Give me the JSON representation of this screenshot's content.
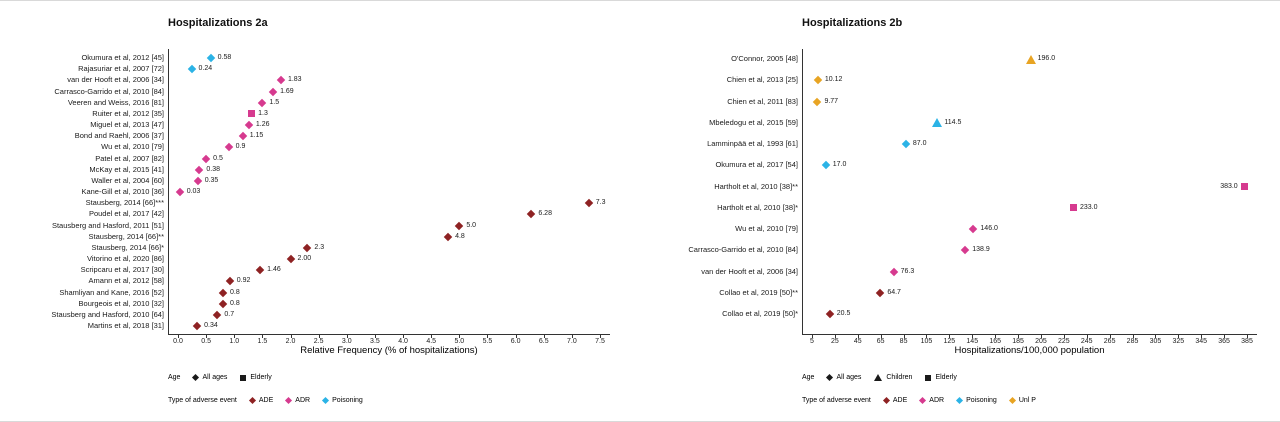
{
  "colors": {
    "ade": "#8e2223",
    "adr": "#d63a8f",
    "poisoning": "#2bb3e6",
    "unlp": "#e8a423",
    "age_glyph": "#1a1a1a",
    "axis": "#333333"
  },
  "legend_titles": {
    "age": "Age",
    "type": "Type of adverse event"
  },
  "chart_data": [
    {
      "type": "scatter",
      "title": "Hospitalizations 2a",
      "xlabel": "Relative Frequency (% of hospitalizations)",
      "xlim": [
        0.0,
        7.5
      ],
      "xticks": [
        "0.0",
        "0.5",
        "1.0",
        "1.5",
        "2.0",
        "2.5",
        "3.0",
        "3.5",
        "4.0",
        "4.5",
        "5.0",
        "5.5",
        "6.0",
        "6.5",
        "7.0",
        "7.5"
      ],
      "grid": false,
      "legend_position": "bottom",
      "age_legend": [
        {
          "label": "All ages",
          "shape": "diamond"
        },
        {
          "label": "Elderly",
          "shape": "square"
        }
      ],
      "type_legend": [
        {
          "label": "ADE",
          "key": "ade"
        },
        {
          "label": "ADR",
          "key": "adr"
        },
        {
          "label": "Poisoning",
          "key": "poisoning"
        }
      ],
      "points": [
        {
          "study": "Okumura et al, 2012 [45]",
          "value": 0.58,
          "label": "0.58",
          "type": "poisoning",
          "shape": "diamond"
        },
        {
          "study": "Rajasuriar et al, 2007 [72]",
          "value": 0.24,
          "label": "0.24",
          "type": "poisoning",
          "shape": "diamond"
        },
        {
          "study": "van der Hooft et al, 2006 [34]",
          "value": 1.83,
          "label": "1.83",
          "type": "adr",
          "shape": "diamond"
        },
        {
          "study": "Carrasco-Garrido et al, 2010 [84]",
          "value": 1.69,
          "label": "1.69",
          "type": "adr",
          "shape": "diamond"
        },
        {
          "study": "Veeren and Weiss, 2016 [81]",
          "value": 1.5,
          "label": "1.5",
          "type": "adr",
          "shape": "diamond"
        },
        {
          "study": "Ruiter et al, 2012 [35]",
          "value": 1.3,
          "label": "1.3",
          "type": "adr",
          "shape": "square"
        },
        {
          "study": "Miguel et al, 2013 [47]",
          "value": 1.26,
          "label": "1.26",
          "type": "adr",
          "shape": "diamond"
        },
        {
          "study": "Bond and Raehl, 2006 [37]",
          "value": 1.15,
          "label": "1.15",
          "type": "adr",
          "shape": "diamond"
        },
        {
          "study": "Wu et al, 2010 [79]",
          "value": 0.9,
          "label": "0.9",
          "type": "adr",
          "shape": "diamond"
        },
        {
          "study": "Patel et al, 2007 [82]",
          "value": 0.5,
          "label": "0.5",
          "type": "adr",
          "shape": "diamond"
        },
        {
          "study": "McKay et al, 2015 [41]",
          "value": 0.38,
          "label": "0.38",
          "type": "adr",
          "shape": "diamond"
        },
        {
          "study": "Waller et al, 2004 [60]",
          "value": 0.35,
          "label": "0.35",
          "type": "adr",
          "shape": "diamond"
        },
        {
          "study": "Kane-Gill et al, 2010 [36]",
          "value": 0.03,
          "label": "0.03",
          "type": "adr",
          "shape": "diamond"
        },
        {
          "study": "Stausberg, 2014 [66]***",
          "value": 7.3,
          "label": "7.3",
          "type": "ade",
          "shape": "diamond"
        },
        {
          "study": "Poudel et al, 2017 [42]",
          "value": 6.28,
          "label": "6.28",
          "type": "ade",
          "shape": "diamond"
        },
        {
          "study": "Stausberg and Hasford, 2011 [51]",
          "value": 5.0,
          "label": "5.0",
          "type": "ade",
          "shape": "diamond"
        },
        {
          "study": "Stausberg, 2014 [66]**",
          "value": 4.8,
          "label": "4.8",
          "type": "ade",
          "shape": "diamond"
        },
        {
          "study": "Stausberg, 2014 [66]*",
          "value": 2.3,
          "label": "2.3",
          "type": "ade",
          "shape": "diamond"
        },
        {
          "study": "Vitorino et al, 2020 [86]",
          "value": 2.0,
          "label": "2.00",
          "type": "ade",
          "shape": "diamond"
        },
        {
          "study": "Scripcaru et al, 2017 [30]",
          "value": 1.46,
          "label": "1.46",
          "type": "ade",
          "shape": "diamond"
        },
        {
          "study": "Amann et al, 2012 [58]",
          "value": 0.92,
          "label": "0.92",
          "type": "ade",
          "shape": "diamond"
        },
        {
          "study": "Shamliyan and Kane, 2016 [52]",
          "value": 0.8,
          "label": "0.8",
          "type": "ade",
          "shape": "diamond"
        },
        {
          "study": "Bourgeois et al, 2010 [32]",
          "value": 0.8,
          "label": "0.8",
          "type": "ade",
          "shape": "diamond"
        },
        {
          "study": "Stausberg and Hasford, 2010 [64]",
          "value": 0.7,
          "label": "0.7",
          "type": "ade",
          "shape": "diamond"
        },
        {
          "study": "Martins et al, 2018 [31]",
          "value": 0.34,
          "label": "0.34",
          "type": "ade",
          "shape": "diamond"
        }
      ]
    },
    {
      "type": "scatter",
      "title": "Hospitalizations 2b",
      "xlabel": "Hospitalizations/100,000 population",
      "xlim": [
        5,
        385
      ],
      "xticks": [
        "5",
        "25",
        "45",
        "65",
        "85",
        "105",
        "125",
        "145",
        "165",
        "185",
        "205",
        "225",
        "245",
        "265",
        "285",
        "305",
        "325",
        "345",
        "365",
        "385"
      ],
      "grid": false,
      "legend_position": "bottom",
      "age_legend": [
        {
          "label": "All ages",
          "shape": "diamond"
        },
        {
          "label": "Children",
          "shape": "triangle"
        },
        {
          "label": "Elderly",
          "shape": "square"
        }
      ],
      "type_legend": [
        {
          "label": "ADE",
          "key": "ade"
        },
        {
          "label": "ADR",
          "key": "adr"
        },
        {
          "label": "Poisoning",
          "key": "poisoning"
        },
        {
          "label": "Unl P",
          "key": "unlp"
        }
      ],
      "points": [
        {
          "study": "O'Connor, 2005 [48]",
          "value": 196.0,
          "label": "196.0",
          "type": "unlp",
          "shape": "triangle"
        },
        {
          "study": "Chien et al, 2013 [25]",
          "value": 10.12,
          "label": "10.12",
          "type": "unlp",
          "shape": "diamond"
        },
        {
          "study": "Chien et al, 2011 [83]",
          "value": 9.77,
          "label": "9.77",
          "type": "unlp",
          "shape": "diamond"
        },
        {
          "study": "Mbeledogu et al, 2015 [59]",
          "value": 114.5,
          "label": "114.5",
          "type": "poisoning",
          "shape": "triangle"
        },
        {
          "study": "Lamminpää et al, 1993 [61]",
          "value": 87.0,
          "label": "87.0",
          "type": "poisoning",
          "shape": "diamond"
        },
        {
          "study": "Okumura et al, 2017 [54]",
          "value": 17.0,
          "label": "17.0",
          "type": "poisoning",
          "shape": "diamond"
        },
        {
          "study": "Hartholt et al, 2010 [38]**",
          "value": 383.0,
          "label": "383.0",
          "type": "adr",
          "shape": "square",
          "label_side": "left"
        },
        {
          "study": "Hartholt et al, 2010 [38]*",
          "value": 233.0,
          "label": "233.0",
          "type": "adr",
          "shape": "square"
        },
        {
          "study": "Wu et al, 2010 [79]",
          "value": 146.0,
          "label": "146.0",
          "type": "adr",
          "shape": "diamond"
        },
        {
          "study": "Carrasco-Garrido et al, 2010 [84]",
          "value": 138.9,
          "label": "138.9",
          "type": "adr",
          "shape": "diamond"
        },
        {
          "study": "van der Hooft et al, 2006 [34]",
          "value": 76.3,
          "label": "76.3",
          "type": "adr",
          "shape": "diamond"
        },
        {
          "study": "Collao et al, 2019 [50]**",
          "value": 64.7,
          "label": "64.7",
          "type": "ade",
          "shape": "diamond"
        },
        {
          "study": "Collao et al, 2019 [50]*",
          "value": 20.5,
          "label": "20.5",
          "type": "ade",
          "shape": "diamond"
        }
      ]
    }
  ]
}
